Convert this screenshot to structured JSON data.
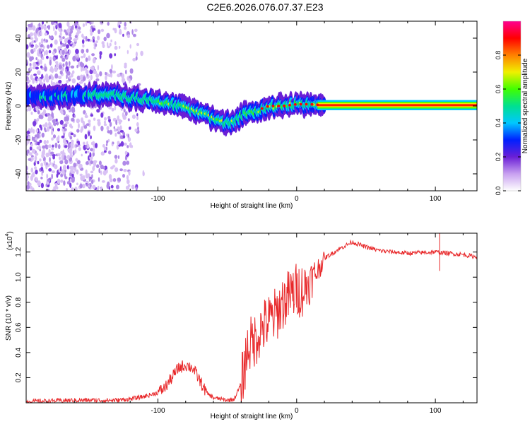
{
  "title": "C2E6.2026.076.07.37.E23",
  "chart_data": [
    {
      "type": "heatmap",
      "name": "spectrogram",
      "xlabel": "Height of straight line (km)",
      "ylabel": "Frequency (Hz)",
      "xlim": [
        -195,
        130
      ],
      "ylim": [
        -50,
        50
      ],
      "xticks": [
        -100,
        0,
        100
      ],
      "yticks": [
        -40,
        -20,
        0,
        20,
        40
      ],
      "colorbar": {
        "label": "Normalized spectral amplitude",
        "range": [
          0,
          1
        ],
        "ticks": [
          0.0,
          0.2,
          0.4,
          0.6,
          0.8
        ],
        "palette": [
          "#ffffff",
          "#c8a0f0",
          "#6a1fd6",
          "#0020ff",
          "#00c8ff",
          "#00e090",
          "#40ff00",
          "#f0f000",
          "#ff8000",
          "#ff0000",
          "#ff0090"
        ]
      },
      "ridge": [
        {
          "x": -195,
          "y": 6
        },
        {
          "x": -175,
          "y": 6
        },
        {
          "x": -150,
          "y": 6
        },
        {
          "x": -140,
          "y": 7
        },
        {
          "x": -130,
          "y": 6
        },
        {
          "x": -120,
          "y": 5
        },
        {
          "x": -110,
          "y": 4
        },
        {
          "x": -100,
          "y": 3
        },
        {
          "x": -90,
          "y": 1
        },
        {
          "x": -80,
          "y": -1
        },
        {
          "x": -70,
          "y": -4
        },
        {
          "x": -60,
          "y": -7
        },
        {
          "x": -52,
          "y": -10
        },
        {
          "x": -48,
          "y": -10
        },
        {
          "x": -44,
          "y": -8
        },
        {
          "x": -38,
          "y": -5
        },
        {
          "x": -30,
          "y": -3
        },
        {
          "x": -20,
          "y": 0
        },
        {
          "x": -10,
          "y": 0
        },
        {
          "x": 0,
          "y": 1
        },
        {
          "x": 10,
          "y": 1
        },
        {
          "x": 20,
          "y": 0.5
        },
        {
          "x": 130,
          "y": 0.5
        }
      ]
    },
    {
      "type": "line",
      "name": "snr",
      "xlabel": "Height of straight line (km)",
      "ylabel": "SNR (10 * v/v)",
      "yscale_label": "(x10",
      "yscale_exp": "4",
      "xlim": [
        -195,
        130
      ],
      "ylim": [
        0,
        1.35
      ],
      "xticks": [
        -100,
        0,
        100
      ],
      "yticks": [
        0.2,
        0.4,
        0.6,
        0.8,
        1.0,
        1.2
      ],
      "color": "#e8282a",
      "series": [
        {
          "name": "SNR",
          "x": [
            -195,
            -160,
            -130,
            -120,
            -110,
            -100,
            -95,
            -90,
            -85,
            -80,
            -75,
            -70,
            -65,
            -60,
            -55,
            -50,
            -45,
            -40,
            -35,
            -30,
            -25,
            -20,
            -15,
            -10,
            -5,
            0,
            5,
            10,
            15,
            20,
            30,
            40,
            50,
            60,
            80,
            100,
            110,
            120,
            130
          ],
          "y": [
            0.01,
            0.02,
            0.02,
            0.03,
            0.05,
            0.08,
            0.12,
            0.2,
            0.28,
            0.3,
            0.28,
            0.18,
            0.08,
            0.04,
            0.03,
            0.02,
            0.03,
            0.15,
            0.45,
            0.5,
            0.6,
            0.65,
            0.7,
            0.8,
            0.85,
            0.9,
            0.9,
            0.97,
            1.05,
            1.15,
            1.22,
            1.28,
            1.24,
            1.21,
            1.19,
            1.2,
            1.19,
            1.18,
            1.16
          ]
        }
      ]
    }
  ]
}
